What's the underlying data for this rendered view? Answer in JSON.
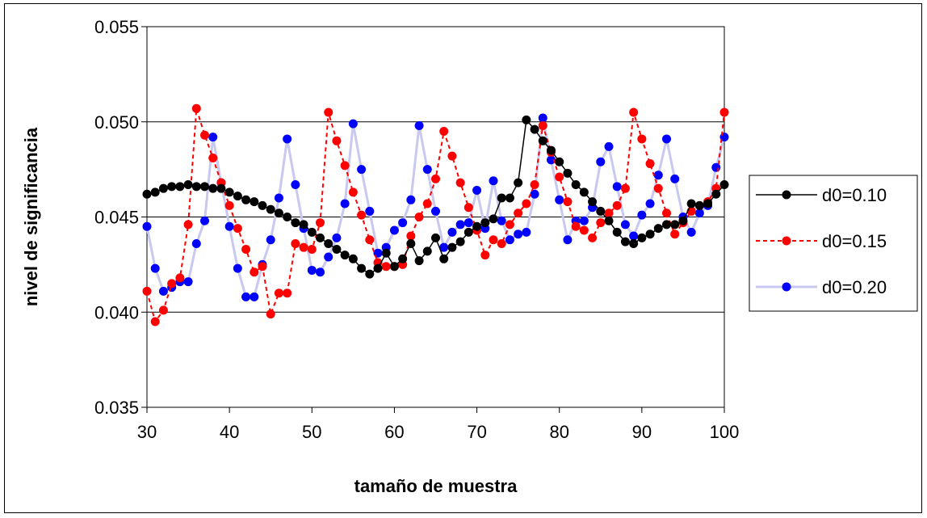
{
  "chart_data": {
    "type": "line",
    "xlabel": "tamaño de muestra",
    "ylabel": "nivel de significancia",
    "xlim": [
      30,
      100
    ],
    "ylim": [
      0.035,
      0.055
    ],
    "xticks": [
      "30",
      "40",
      "50",
      "60",
      "70",
      "80",
      "90",
      "100"
    ],
    "yticks": [
      "0.035",
      "0.040",
      "0.045",
      "0.050",
      "0.055"
    ],
    "grid": "horizontal major gridlines",
    "legend_position": "right",
    "x": [
      30,
      31,
      32,
      33,
      34,
      35,
      36,
      37,
      38,
      39,
      40,
      41,
      42,
      43,
      44,
      45,
      46,
      47,
      48,
      49,
      50,
      51,
      52,
      53,
      54,
      55,
      56,
      57,
      58,
      59,
      60,
      61,
      62,
      63,
      64,
      65,
      66,
      67,
      68,
      69,
      70,
      71,
      72,
      73,
      74,
      75,
      76,
      77,
      78,
      79,
      80,
      81,
      82,
      83,
      84,
      85,
      86,
      87,
      88,
      89,
      90,
      91,
      92,
      93,
      94,
      95,
      96,
      97,
      98,
      99,
      100
    ],
    "series": [
      {
        "name": "d0=0.10",
        "color": "#000000",
        "line_style": "solid",
        "values": [
          0.0462,
          0.0463,
          0.0465,
          0.0466,
          0.0466,
          0.0467,
          0.0466,
          0.0466,
          0.0465,
          0.0465,
          0.0463,
          0.0461,
          0.0459,
          0.0458,
          0.0456,
          0.0454,
          0.0452,
          0.045,
          0.0447,
          0.0446,
          0.0442,
          0.0439,
          0.0436,
          0.0433,
          0.043,
          0.0428,
          0.0423,
          0.042,
          0.0423,
          0.0431,
          0.0424,
          0.0428,
          0.0436,
          0.0427,
          0.0432,
          0.0439,
          0.0428,
          0.0434,
          0.0437,
          0.0442,
          0.0445,
          0.0447,
          0.0449,
          0.046,
          0.046,
          0.0468,
          0.0501,
          0.0496,
          0.049,
          0.0485,
          0.0479,
          0.0473,
          0.0467,
          0.0463,
          0.0458,
          0.0453,
          0.0448,
          0.0442,
          0.0437,
          0.0436,
          0.0439,
          0.0441,
          0.0444,
          0.0446,
          0.0446,
          0.0448,
          0.0457,
          0.0456,
          0.0457,
          0.0462,
          0.0467
        ]
      },
      {
        "name": "d0=0.15",
        "color": "#ff0000",
        "line_style": "dashed",
        "values": [
          0.0411,
          0.0395,
          0.0401,
          0.0415,
          0.0418,
          0.0446,
          0.0507,
          0.0493,
          0.0481,
          0.0468,
          0.0456,
          0.0444,
          0.0433,
          0.0421,
          0.0424,
          0.0399,
          0.041,
          0.041,
          0.0436,
          0.0434,
          0.0433,
          0.0447,
          0.0505,
          0.049,
          0.0477,
          0.0463,
          0.0451,
          0.0438,
          0.0426,
          0.0424,
          0.0424,
          0.0425,
          0.044,
          0.045,
          0.0457,
          0.047,
          0.0495,
          0.0482,
          0.0468,
          0.0455,
          0.0443,
          0.043,
          0.0438,
          0.0436,
          0.0446,
          0.0452,
          0.0457,
          0.0467,
          0.0498,
          0.0484,
          0.0471,
          0.0458,
          0.0445,
          0.0443,
          0.0439,
          0.0447,
          0.0452,
          0.0456,
          0.0465,
          0.0505,
          0.0491,
          0.0478,
          0.0465,
          0.0452,
          0.0441,
          0.0447,
          0.0453,
          0.0456,
          0.0458,
          0.0465,
          0.0505
        ]
      },
      {
        "name": "d0=0.20",
        "color": "#0000ff",
        "line_style": "solid",
        "line_color": "#c8c8f0",
        "values": [
          0.0445,
          0.0423,
          0.0411,
          0.0413,
          0.0416,
          0.0416,
          0.0436,
          0.0448,
          0.0492,
          0.0468,
          0.0445,
          0.0423,
          0.0408,
          0.0408,
          0.0425,
          0.0438,
          0.046,
          0.0491,
          0.0467,
          0.0444,
          0.0422,
          0.0421,
          0.0429,
          0.0439,
          0.0457,
          0.0499,
          0.0475,
          0.0453,
          0.0431,
          0.0434,
          0.0443,
          0.0447,
          0.0459,
          0.0498,
          0.0475,
          0.0453,
          0.0434,
          0.0442,
          0.0446,
          0.0447,
          0.0464,
          0.0444,
          0.0469,
          0.0448,
          0.0438,
          0.0441,
          0.0442,
          0.0462,
          0.0502,
          0.048,
          0.0459,
          0.0438,
          0.0448,
          0.0448,
          0.0455,
          0.0479,
          0.0487,
          0.0466,
          0.0446,
          0.044,
          0.0451,
          0.0457,
          0.0472,
          0.0491,
          0.047,
          0.045,
          0.0442,
          0.0452,
          0.0456,
          0.0476,
          0.0492
        ]
      }
    ]
  }
}
